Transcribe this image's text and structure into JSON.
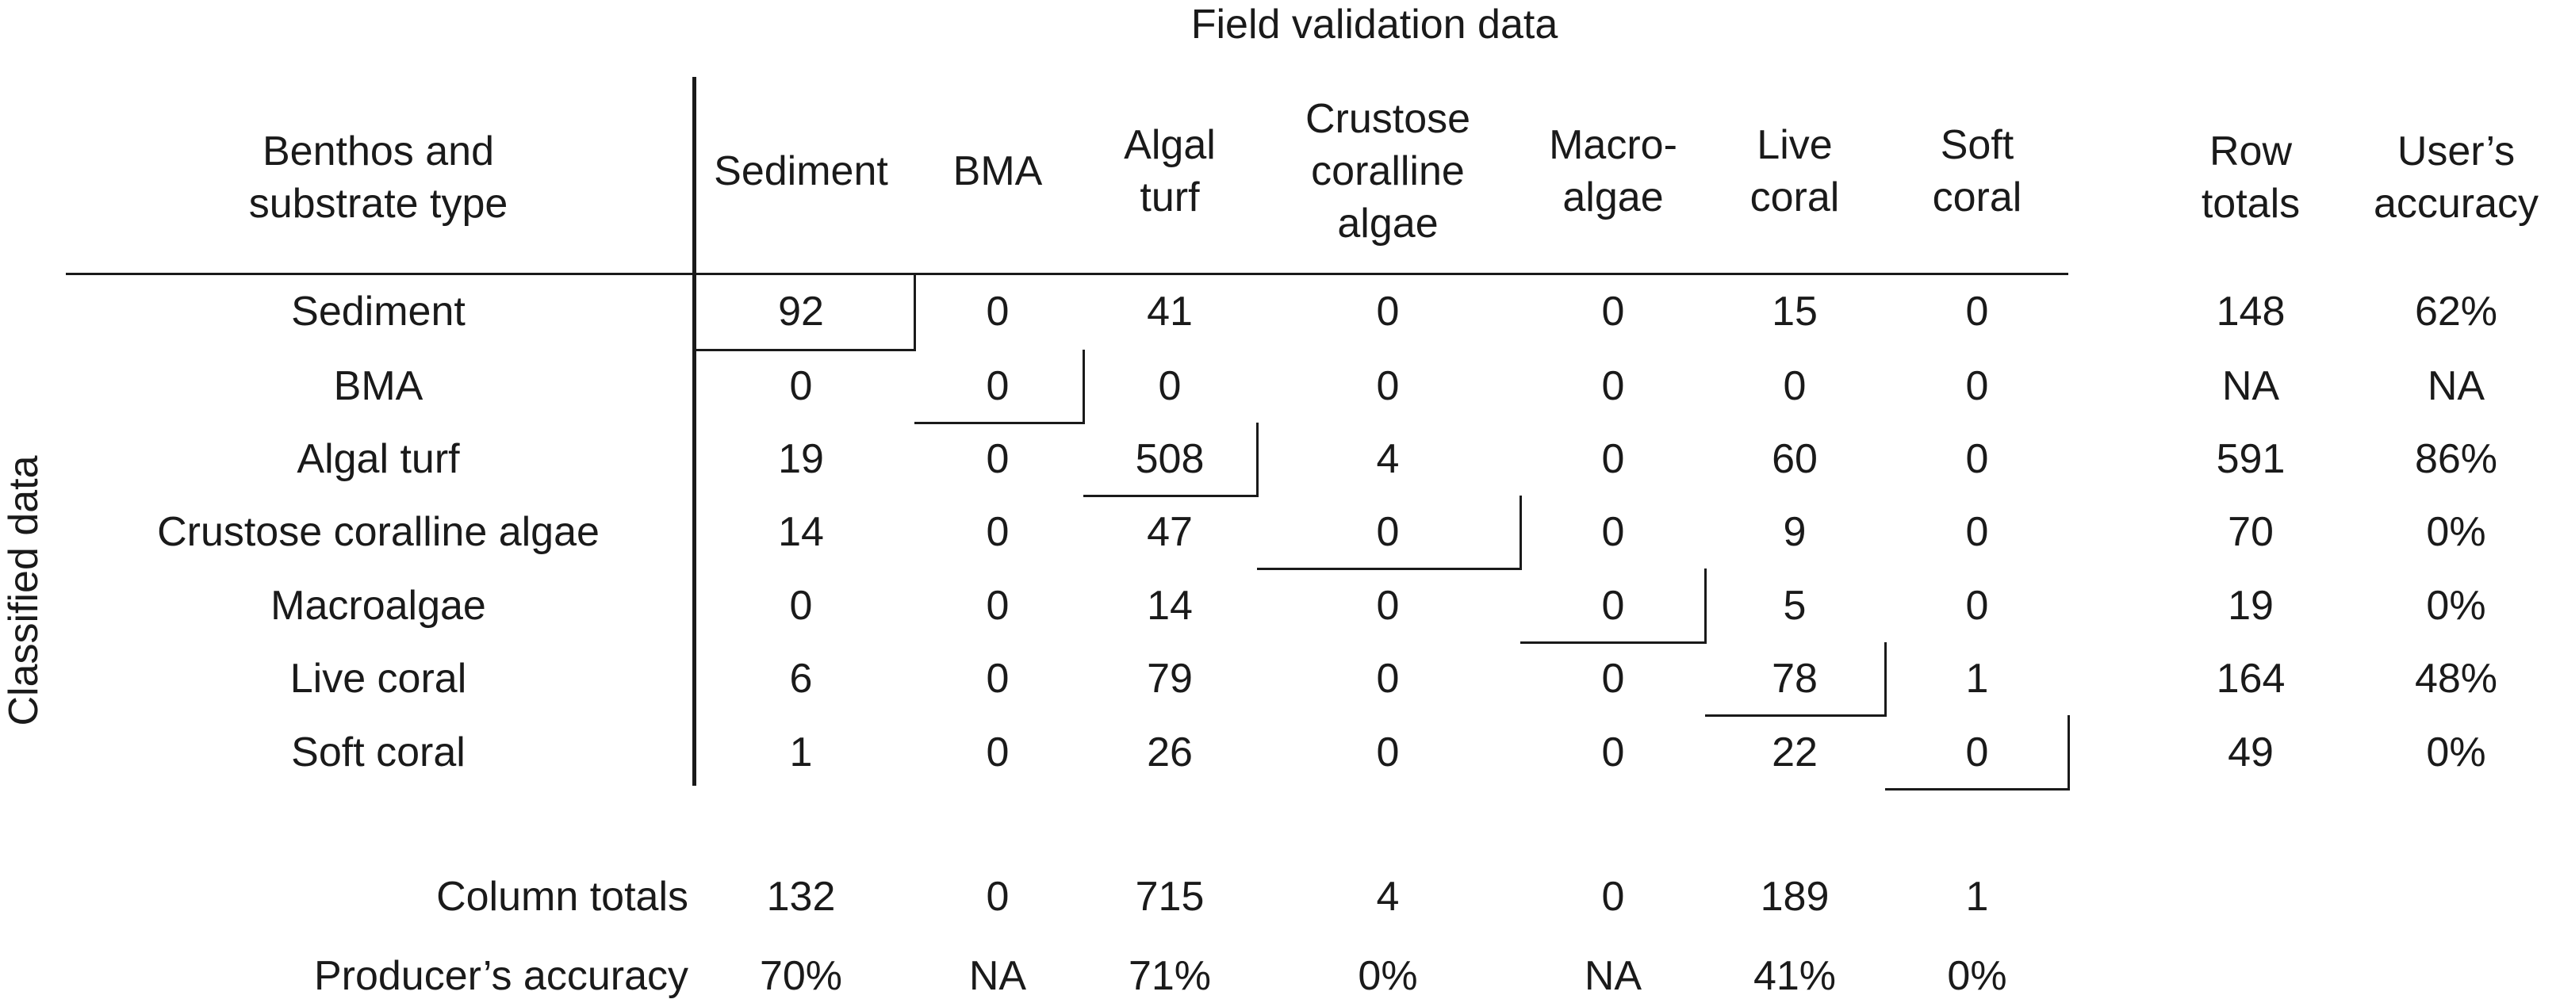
{
  "chart_data": {
    "type": "table",
    "title": "Field validation data",
    "row_axis_label": "Classified data",
    "corner_header": "Benthos and substrate type",
    "columns": [
      "Sediment",
      "BMA",
      "Algal turf",
      "Crustose coralline algae",
      "Macro-algae",
      "Live coral",
      "Soft coral"
    ],
    "rows": [
      {
        "label": "Sediment",
        "values": [
          "92",
          "0",
          "41",
          "0",
          "0",
          "15",
          "0"
        ],
        "row_total": "148",
        "users_accuracy": "62%"
      },
      {
        "label": "BMA",
        "values": [
          "0",
          "0",
          "0",
          "0",
          "0",
          "0",
          "0"
        ],
        "row_total": "NA",
        "users_accuracy": "NA"
      },
      {
        "label": "Algal turf",
        "values": [
          "19",
          "0",
          "508",
          "4",
          "0",
          "60",
          "0"
        ],
        "row_total": "591",
        "users_accuracy": "86%"
      },
      {
        "label": "Crustose coralline algae",
        "values": [
          "14",
          "0",
          "47",
          "0",
          "0",
          "9",
          "0"
        ],
        "row_total": "70",
        "users_accuracy": "0%"
      },
      {
        "label": "Macroalgae",
        "values": [
          "0",
          "0",
          "14",
          "0",
          "0",
          "5",
          "0"
        ],
        "row_total": "19",
        "users_accuracy": "0%"
      },
      {
        "label": "Live coral",
        "values": [
          "6",
          "0",
          "79",
          "0",
          "0",
          "78",
          "1"
        ],
        "row_total": "164",
        "users_accuracy": "48%"
      },
      {
        "label": "Soft coral",
        "values": [
          "1",
          "0",
          "26",
          "0",
          "0",
          "22",
          "0"
        ],
        "row_total": "49",
        "users_accuracy": "0%"
      }
    ],
    "row_totals_header": "Row totals",
    "users_accuracy_header": "User’s accuracy",
    "column_totals_label": "Column totals",
    "column_totals": [
      "132",
      "0",
      "715",
      "4",
      "0",
      "189",
      "1"
    ],
    "producers_accuracy_label": "Producer’s accuracy",
    "producers_accuracy": [
      "70%",
      "NA",
      "71%",
      "0%",
      "NA",
      "41%",
      "0%"
    ]
  }
}
